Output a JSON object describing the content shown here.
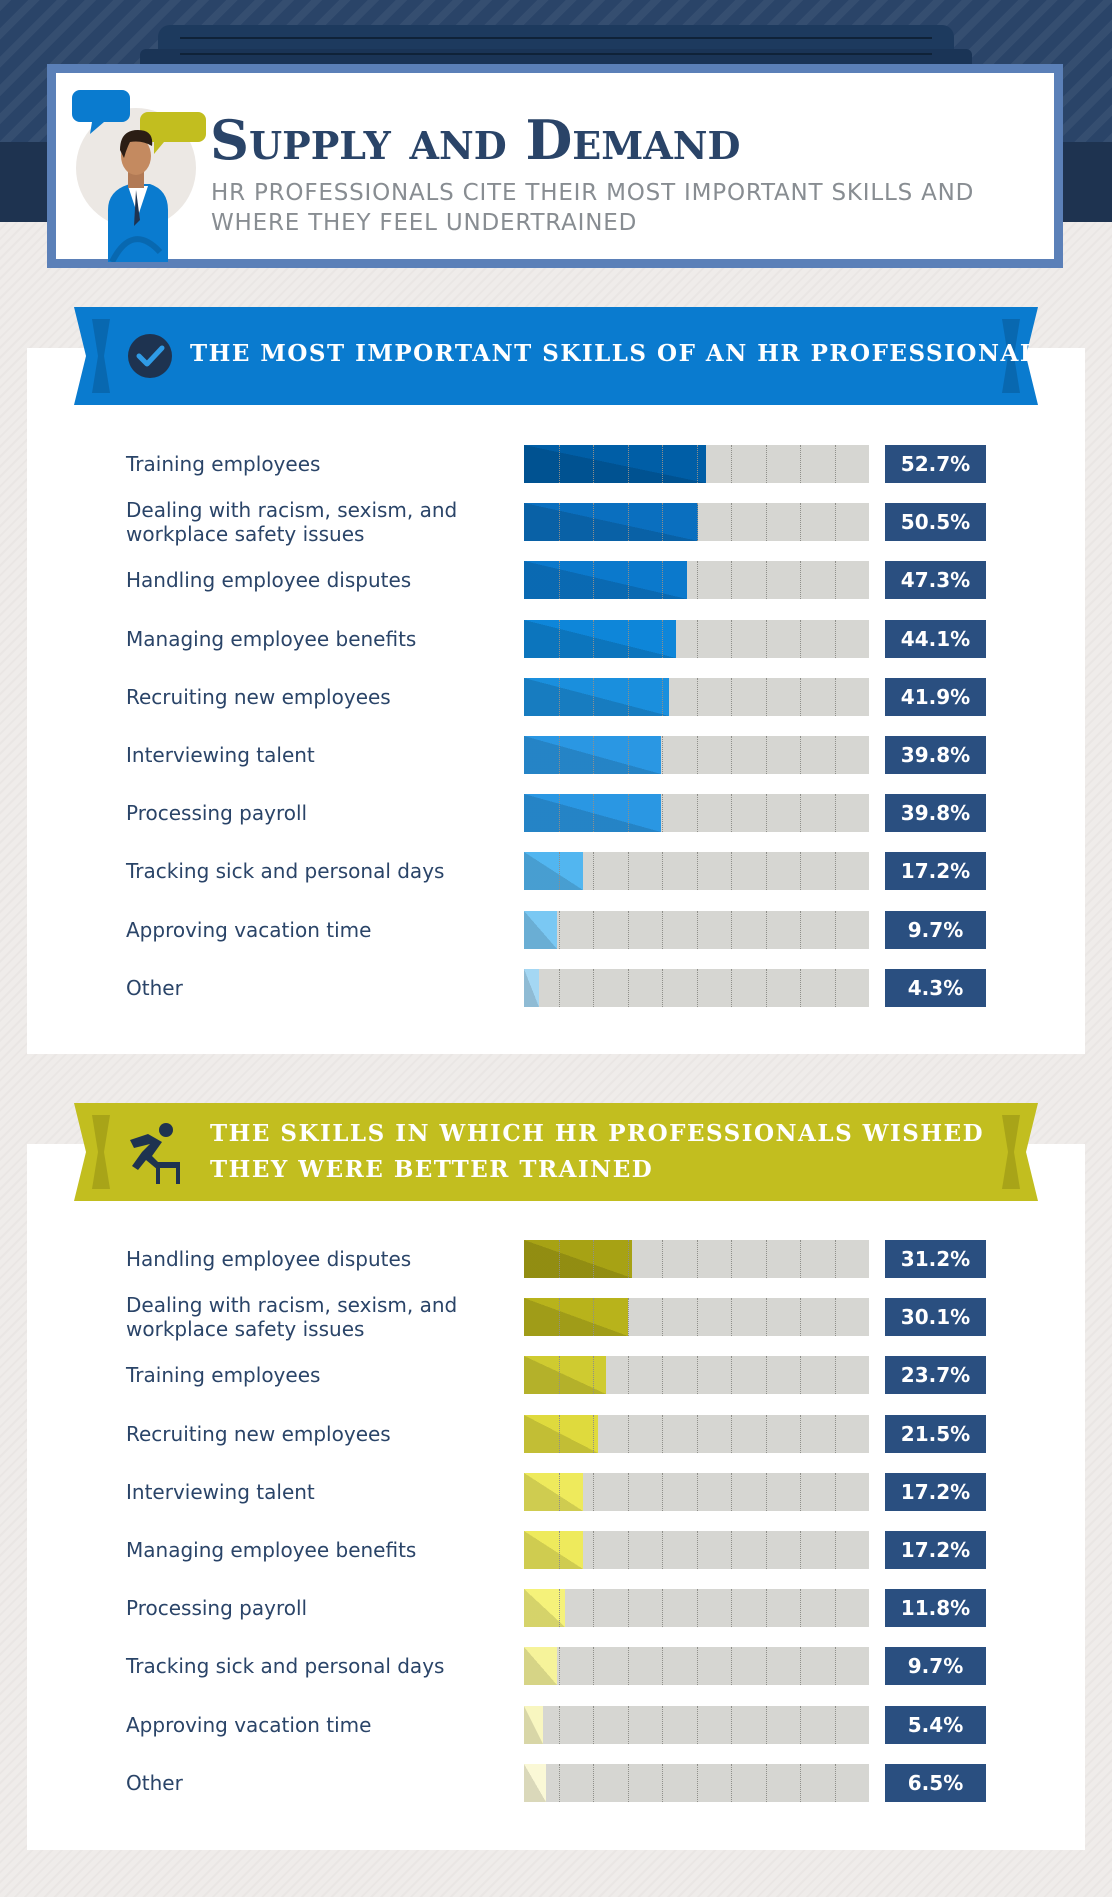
{
  "header": {
    "title": "Supply and Demand",
    "subtitle": "HR PROFESSIONALS CITE THEIR MOST IMPORTANT SKILLS AND WHERE THEY FEEL UNDERTRAINED",
    "icons": [
      "speech-bubble-icon",
      "person-avatar-icon"
    ]
  },
  "colors": {
    "navy": "#2a4468",
    "blue_ribbon": "#0a7bcf",
    "olive_ribbon": "#c2be1f",
    "value_box": "#2a4f80",
    "track": "#d6d6d2"
  },
  "chart_data": [
    {
      "type": "bar",
      "title": "THE MOST IMPORTANT SKILLS OF AN HR PROFESSIONAL",
      "icon": "checkmark-icon",
      "orientation": "horizontal",
      "categories": [
        "Training employees",
        "Dealing with racism, sexism, and workplace safety issues",
        "Handling employee disputes",
        "Managing employee benefits",
        "Recruiting new employees",
        "Interviewing talent",
        "Processing payroll",
        "Tracking sick and personal days",
        "Approving vacation time",
        "Other"
      ],
      "values": [
        52.7,
        50.5,
        47.3,
        44.1,
        41.9,
        39.8,
        39.8,
        17.2,
        9.7,
        4.3
      ],
      "value_labels": [
        "52.7%",
        "50.5%",
        "47.3%",
        "44.1%",
        "41.9%",
        "39.8%",
        "39.8%",
        "17.2%",
        "9.7%",
        "4.3%"
      ],
      "xlim": [
        0,
        100
      ],
      "grid": true,
      "bar_colors": [
        "#005ea6",
        "#0a6fbf",
        "#0b79cc",
        "#0e86d9",
        "#1a8fdd",
        "#2a97e3",
        "#2a97e3",
        "#52b6f0",
        "#7ac8f3",
        "#a4d7f3"
      ]
    },
    {
      "type": "bar",
      "title": "THE SKILLS IN WHICH HR PROFESSIONALS WISHED THEY WERE BETTER TRAINED",
      "icon": "stumbling-person-icon",
      "orientation": "horizontal",
      "categories": [
        "Handling employee disputes",
        "Dealing with racism, sexism, and workplace safety issues",
        "Training employees",
        "Recruiting new employees",
        "Interviewing talent",
        "Managing employee benefits",
        "Processing payroll",
        "Tracking sick and personal days",
        "Approving vacation time",
        "Other"
      ],
      "values": [
        31.2,
        30.1,
        23.7,
        21.5,
        17.2,
        17.2,
        11.8,
        9.7,
        5.4,
        6.5
      ],
      "value_labels": [
        "31.2%",
        "30.1%",
        "23.7%",
        "21.5%",
        "17.2%",
        "17.2%",
        "11.8%",
        "9.7%",
        "5.4%",
        "6.5%"
      ],
      "xlim": [
        0,
        100
      ],
      "grid": true,
      "bar_colors": [
        "#a7a214",
        "#b8b31b",
        "#cfcb30",
        "#dfda3d",
        "#eeea5c",
        "#eeea5c",
        "#f5f27a",
        "#f6f39a",
        "#f8f6c0",
        "#faf8d6"
      ]
    }
  ]
}
